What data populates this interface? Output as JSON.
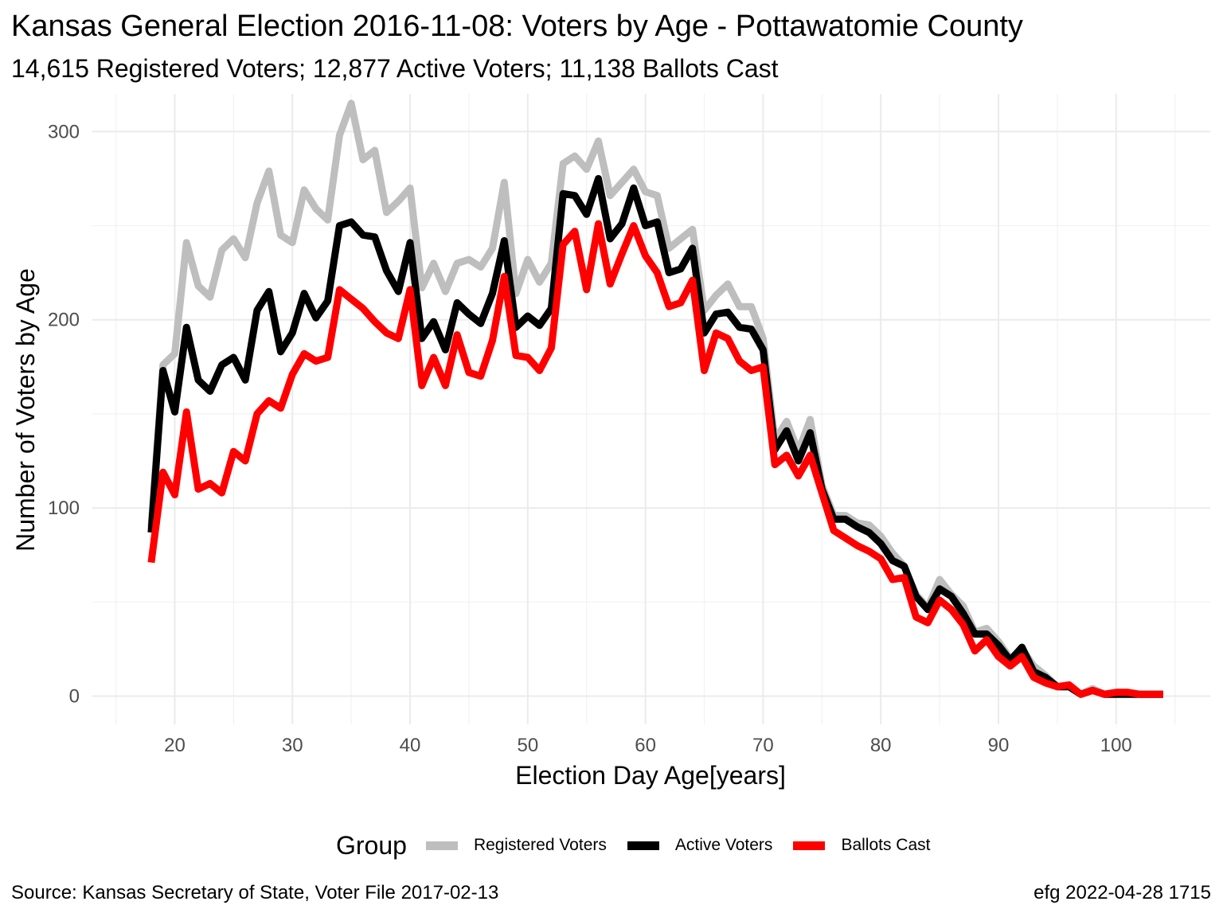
{
  "title": "Kansas General Election 2016-11-08:  Voters by Age - Pottawatomie County",
  "subtitle": "14,615 Registered Voters; 12,877 Active Voters; 11,138 Ballots Cast",
  "source": "Source:  Kansas Secretary of State, Voter File  2017-02-13",
  "credit": "efg 2022-04-28 1715",
  "chart_data": {
    "type": "line",
    "xlabel": "Election Day Age[years]",
    "ylabel": "Number of Voters by Age",
    "xlim": [
      13,
      108
    ],
    "ylim": [
      -15,
      320
    ],
    "x_ticks": [
      20,
      30,
      40,
      50,
      60,
      70,
      80,
      90,
      100
    ],
    "y_ticks": [
      0,
      100,
      200,
      300
    ],
    "grid": true,
    "legend_title": "Group",
    "legend_position": "bottom",
    "x": [
      18,
      19,
      20,
      21,
      22,
      23,
      24,
      25,
      26,
      27,
      28,
      29,
      30,
      31,
      32,
      33,
      34,
      35,
      36,
      37,
      38,
      39,
      40,
      41,
      42,
      43,
      44,
      45,
      46,
      47,
      48,
      49,
      50,
      51,
      52,
      53,
      54,
      55,
      56,
      57,
      58,
      59,
      60,
      61,
      62,
      63,
      64,
      65,
      66,
      67,
      68,
      69,
      70,
      71,
      72,
      73,
      74,
      75,
      76,
      77,
      78,
      79,
      80,
      81,
      82,
      83,
      84,
      85,
      86,
      87,
      88,
      89,
      90,
      91,
      92,
      93,
      94,
      95,
      96,
      97,
      98,
      99,
      100,
      101,
      102,
      103,
      104
    ],
    "series": [
      {
        "name": "Registered Voters",
        "color": "#bebebe",
        "values": [
          90,
          176,
          182,
          241,
          218,
          212,
          237,
          243,
          233,
          262,
          279,
          245,
          241,
          269,
          259,
          253,
          298,
          315,
          285,
          290,
          257,
          263,
          270,
          217,
          230,
          215,
          230,
          232,
          228,
          238,
          273,
          214,
          232,
          220,
          230,
          283,
          287,
          280,
          295,
          266,
          273,
          280,
          268,
          266,
          238,
          243,
          248,
          205,
          213,
          219,
          207,
          207,
          190,
          136,
          146,
          130,
          147,
          112,
          96,
          96,
          92,
          91,
          85,
          76,
          69,
          54,
          47,
          62,
          54,
          48,
          34,
          36,
          29,
          20,
          25,
          16,
          11,
          5,
          5,
          1,
          4,
          1,
          2,
          2,
          1,
          1,
          1
        ]
      },
      {
        "name": "Active Voters",
        "color": "#000000",
        "values": [
          87,
          173,
          151,
          196,
          168,
          162,
          176,
          180,
          168,
          205,
          215,
          183,
          193,
          214,
          201,
          210,
          250,
          252,
          245,
          244,
          226,
          215,
          241,
          190,
          199,
          184,
          209,
          203,
          198,
          214,
          242,
          196,
          202,
          197,
          206,
          267,
          266,
          256,
          275,
          243,
          251,
          270,
          250,
          252,
          225,
          227,
          238,
          193,
          203,
          204,
          196,
          195,
          184,
          131,
          141,
          125,
          140,
          110,
          94,
          94,
          90,
          87,
          81,
          72,
          69,
          53,
          46,
          57,
          53,
          44,
          33,
          33,
          27,
          19,
          26,
          13,
          10,
          5,
          5,
          1,
          3,
          1,
          1,
          1,
          1,
          1,
          1
        ]
      },
      {
        "name": "Ballots Cast",
        "color": "#ff0000",
        "values": [
          71,
          119,
          107,
          151,
          110,
          113,
          108,
          130,
          125,
          150,
          157,
          153,
          171,
          182,
          178,
          180,
          216,
          211,
          206,
          199,
          193,
          190,
          216,
          165,
          180,
          165,
          192,
          172,
          170,
          189,
          223,
          181,
          180,
          173,
          185,
          240,
          247,
          216,
          251,
          219,
          235,
          250,
          234,
          225,
          207,
          209,
          221,
          173,
          193,
          190,
          178,
          173,
          175,
          123,
          128,
          117,
          128,
          108,
          88,
          84,
          80,
          77,
          73,
          62,
          63,
          42,
          39,
          51,
          46,
          38,
          24,
          30,
          21,
          16,
          21,
          10,
          7,
          5,
          6,
          1,
          3,
          1,
          2,
          2,
          1,
          1,
          1
        ]
      }
    ]
  }
}
